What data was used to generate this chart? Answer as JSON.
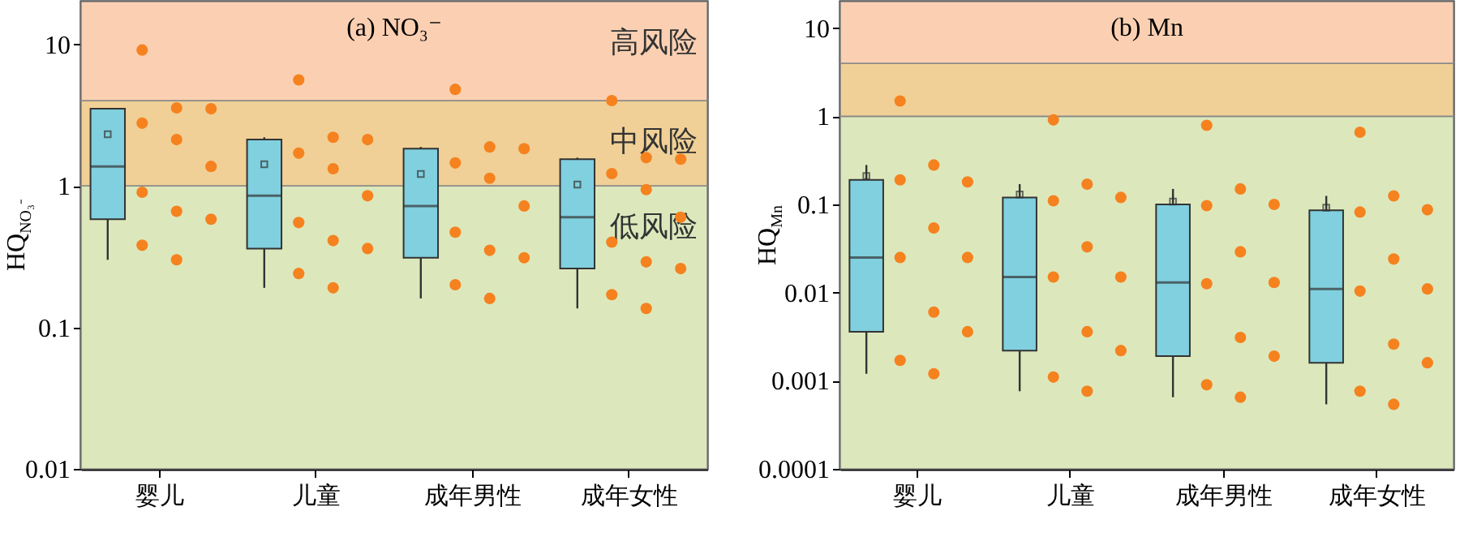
{
  "chart_data": [
    {
      "type": "box",
      "title": "(a) NO₃⁻",
      "ylabel": "HQ$_{NO₃⁻}$",
      "categories": [
        "婴儿",
        "儿童",
        "成年男性",
        "成年女性"
      ],
      "log": true,
      "ylim": [
        0.01,
        20
      ],
      "yticks": [
        0.01,
        0.1,
        1,
        10
      ],
      "grid": false,
      "bands": [
        {
          "axis": "y",
          "from": 0.01,
          "to": 1,
          "label": "低风险",
          "color": "#dce8bc"
        },
        {
          "axis": "y",
          "from": 1,
          "to": 4,
          "label": "中风险",
          "color": "#f0d096"
        },
        {
          "axis": "y",
          "from": 4,
          "to": 20,
          "label": "高风险",
          "color": "#fbd0b2"
        }
      ],
      "series": [
        {
          "type": "box",
          "color": "#80d0df",
          "boxes": [
            {
              "low": 0.3,
              "q1": 0.58,
              "median": 1.37,
              "q3": 3.5,
              "high": 3.55,
              "mean": 2.31
            },
            {
              "low": 0.19,
              "q1": 0.36,
              "median": 0.85,
              "q3": 2.12,
              "high": 2.2,
              "mean": 1.42
            },
            {
              "low": 0.16,
              "q1": 0.31,
              "median": 0.72,
              "q3": 1.83,
              "high": 1.88,
              "mean": 1.21
            },
            {
              "low": 0.136,
              "q1": 0.26,
              "median": 0.6,
              "q3": 1.54,
              "high": 1.58,
              "mean": 1.02
            }
          ]
        },
        {
          "type": "scatter",
          "color": "#f5821f",
          "x": [
            "婴儿",
            "婴儿",
            "婴儿",
            "婴儿",
            "婴儿",
            "婴儿",
            "婴儿",
            "婴儿",
            "婴儿",
            "婴儿",
            "婴儿",
            "儿童",
            "儿童",
            "儿童",
            "儿童",
            "儿童",
            "儿童",
            "儿童",
            "儿童",
            "儿童",
            "儿童",
            "儿童",
            "成年男性",
            "成年男性",
            "成年男性",
            "成年男性",
            "成年男性",
            "成年男性",
            "成年男性",
            "成年男性",
            "成年男性",
            "成年男性",
            "成年男性",
            "成年女性",
            "成年女性",
            "成年女性",
            "成年女性",
            "成年女性",
            "成年女性",
            "成年女性",
            "成年女性",
            "成年女性",
            "成年女性",
            "成年女性"
          ],
          "values": [
            9.1,
            3.55,
            3.5,
            2.77,
            2.12,
            1.37,
            0.9,
            0.66,
            0.58,
            0.38,
            0.3,
            5.6,
            2.2,
            2.12,
            1.7,
            1.32,
            0.85,
            0.55,
            0.41,
            0.36,
            0.24,
            0.19,
            4.8,
            1.88,
            1.83,
            1.45,
            1.13,
            0.72,
            0.47,
            0.35,
            0.31,
            0.2,
            0.16,
            4.0,
            1.58,
            1.54,
            1.22,
            0.94,
            0.6,
            0.4,
            0.29,
            0.26,
            0.17,
            0.136
          ]
        }
      ]
    },
    {
      "type": "box",
      "title": "(b) Mn",
      "ylabel": "HQ$_{Mn}$",
      "categories": [
        "婴儿",
        "儿童",
        "成年男性",
        "成年女性"
      ],
      "log": true,
      "ylim": [
        0.0001,
        20
      ],
      "yticks": [
        0.0001,
        0.001,
        0.01,
        0.1,
        1,
        10
      ],
      "grid": false,
      "bands": [
        {
          "axis": "y",
          "from": 0.0001,
          "to": 1,
          "color": "#dce8bc"
        },
        {
          "axis": "y",
          "from": 1,
          "to": 4,
          "color": "#f0d096"
        },
        {
          "axis": "y",
          "from": 4,
          "to": 20,
          "color": "#fbd0b2"
        }
      ],
      "series": [
        {
          "type": "box",
          "color": "#80d0df",
          "boxes": [
            {
              "low": 0.0012,
              "q1": 0.0036,
              "median": 0.025,
              "q3": 0.19,
              "high": 0.28,
              "mean": 0.21
            },
            {
              "low": 0.00076,
              "q1": 0.0022,
              "median": 0.015,
              "q3": 0.12,
              "high": 0.17,
              "mean": 0.13
            },
            {
              "low": 0.00065,
              "q1": 0.0019,
              "median": 0.013,
              "q3": 0.1,
              "high": 0.15,
              "mean": 0.108
            },
            {
              "low": 0.00054,
              "q1": 0.0016,
              "median": 0.011,
              "q3": 0.086,
              "high": 0.125,
              "mean": 0.092
            }
          ]
        },
        {
          "type": "scatter",
          "color": "#f5821f",
          "x": [
            "婴儿",
            "婴儿",
            "婴儿",
            "婴儿",
            "婴儿",
            "婴儿",
            "婴儿",
            "婴儿",
            "婴儿",
            "婴儿",
            "婴儿",
            "儿童",
            "儿童",
            "儿童",
            "儿童",
            "儿童",
            "儿童",
            "儿童",
            "儿童",
            "儿童",
            "儿童",
            "儿童",
            "成年男性",
            "成年男性",
            "成年男性",
            "成年男性",
            "成年男性",
            "成年男性",
            "成年男性",
            "成年男性",
            "成年男性",
            "成年男性",
            "成年男性",
            "成年女性",
            "成年女性",
            "成年女性",
            "成年女性",
            "成年女性",
            "成年女性",
            "成年女性",
            "成年女性",
            "成年女性",
            "成年女性",
            "成年女性"
          ],
          "values": [
            1.49,
            0.28,
            0.18,
            0.19,
            0.054,
            0.025,
            0.025,
            0.006,
            0.0036,
            0.0017,
            0.0012,
            0.91,
            0.17,
            0.12,
            0.11,
            0.033,
            0.015,
            0.015,
            0.0036,
            0.0022,
            0.0011,
            0.00076,
            0.79,
            0.15,
            0.1,
            0.097,
            0.029,
            0.013,
            0.0126,
            0.0031,
            0.0019,
            0.0009,
            0.00065,
            0.66,
            0.125,
            0.087,
            0.082,
            0.024,
            0.011,
            0.0104,
            0.0026,
            0.0016,
            0.00076,
            0.00054
          ]
        }
      ]
    }
  ]
}
